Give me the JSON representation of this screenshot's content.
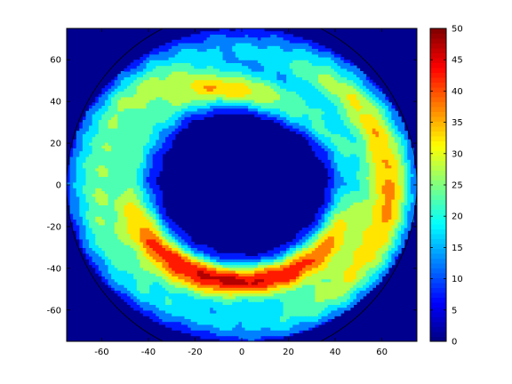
{
  "chart_data": {
    "type": "heatmap",
    "subtype": "filled-contour",
    "title": "",
    "xlabel": "",
    "ylabel": "",
    "xlim": [
      -75,
      75
    ],
    "ylim": [
      -75,
      75
    ],
    "x_ticks": [
      -60,
      -40,
      -20,
      0,
      20,
      40,
      60
    ],
    "y_ticks": [
      -60,
      -40,
      -20,
      0,
      20,
      40,
      60
    ],
    "domain_radius": 75,
    "colorbar": {
      "colormap": "jet",
      "range": [
        0,
        50
      ],
      "ticks": [
        0,
        5,
        10,
        15,
        20,
        25,
        30,
        35,
        40,
        45,
        50
      ],
      "contour_interval": 5
    },
    "features": [
      {
        "name": "inner-low-region",
        "description_value": 0
      },
      {
        "name": "outer-band-max",
        "value": 47
      }
    ],
    "background_value": 0
  },
  "colors": {
    "background": "#00008f",
    "axes_edge": "#000000"
  }
}
